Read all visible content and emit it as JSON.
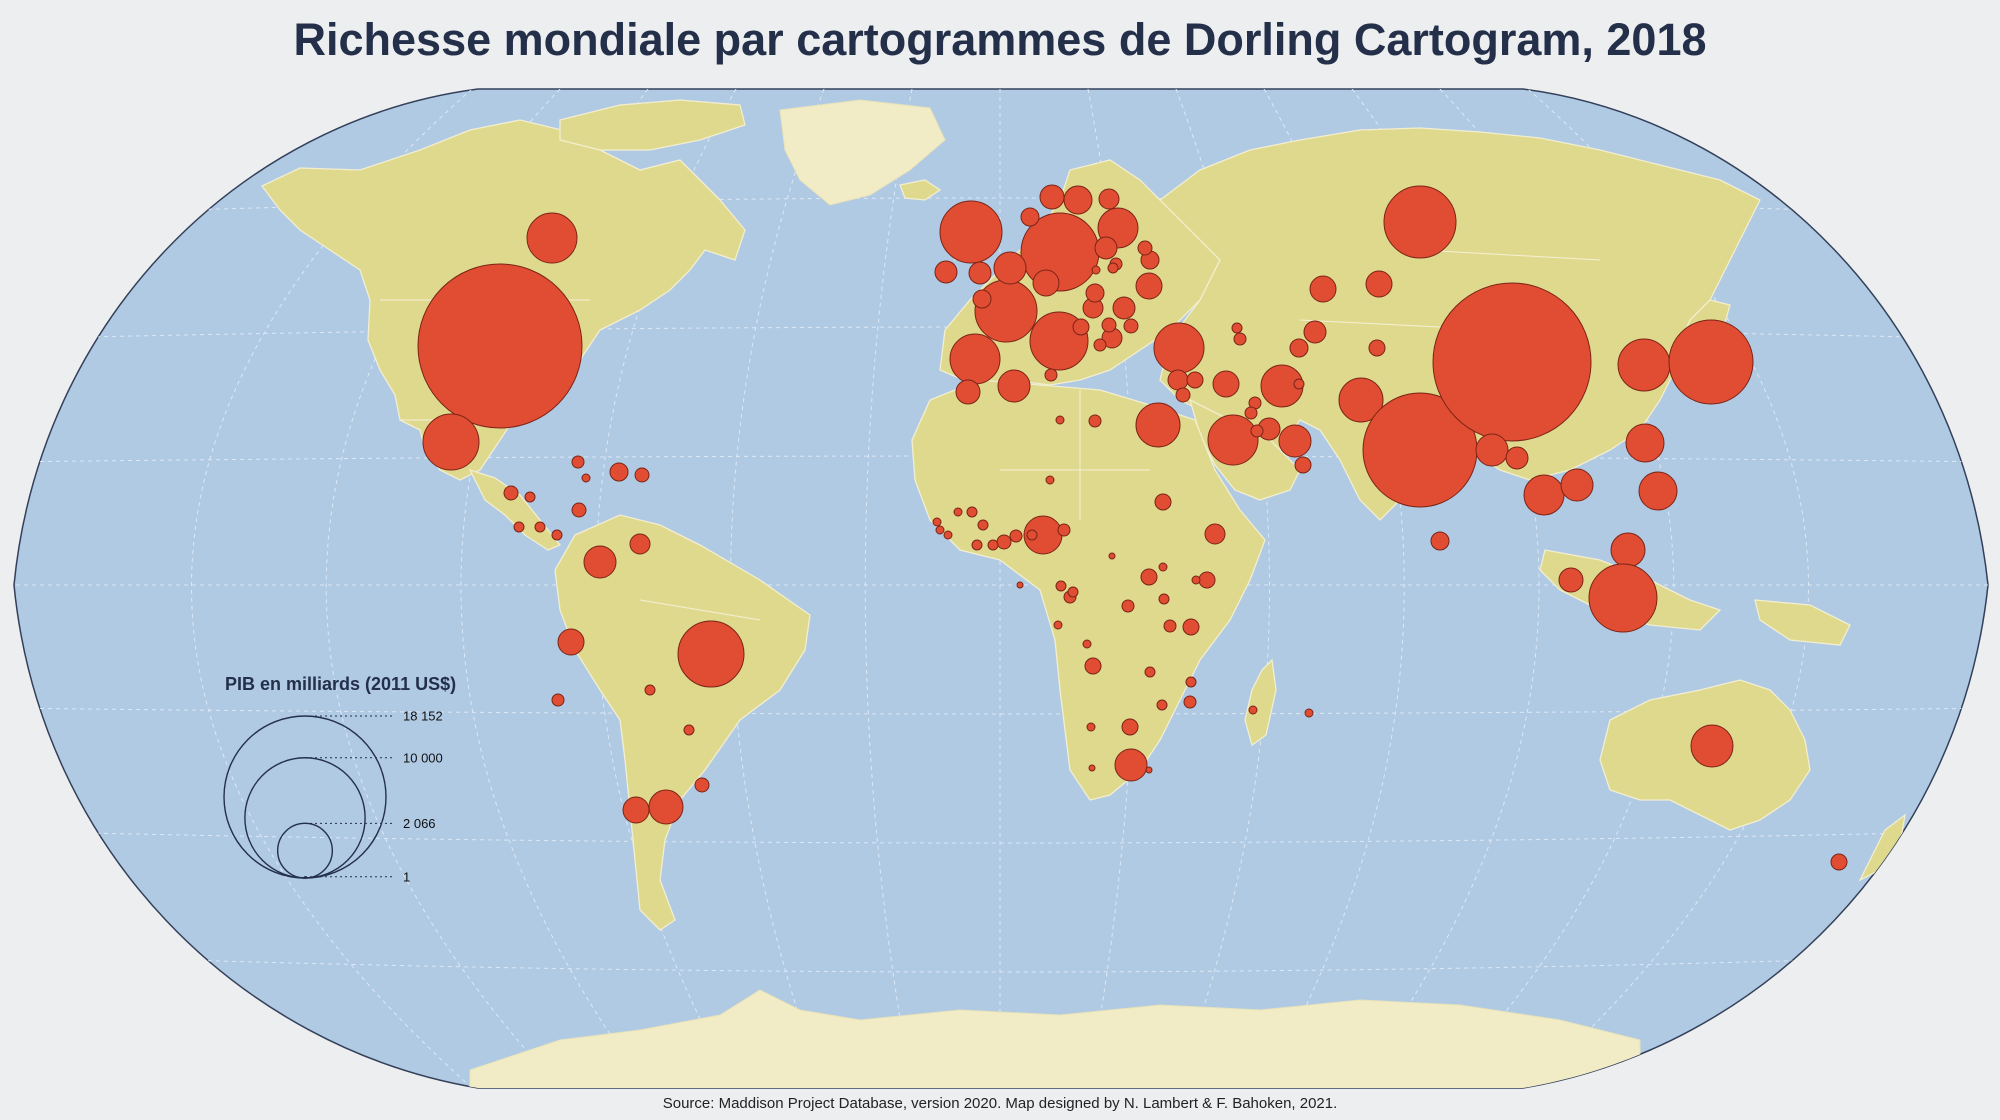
{
  "title": "Richesse mondiale par cartogrammes de Dorling Cartogram, 2018",
  "source": "Source: Maddison Project Database, version 2020. Map designed by N. Lambert & F. Bahoken, 2021.",
  "colors": {
    "background": "#edeef0",
    "ocean": "#b0cae4",
    "land": "#dfd98d",
    "ice": "#f1ecc6",
    "bubble": "#e04d33",
    "title": "#24304a"
  },
  "legend": {
    "title": "PIB en milliards (2011 US$)",
    "entries": [
      {
        "label": "18 152",
        "value": 18152
      },
      {
        "label": "10 000",
        "value": 10000
      },
      {
        "label": "2 066",
        "value": 2066
      },
      {
        "label": "1",
        "value": 1
      }
    ]
  },
  "projection": "Winkel Tripel",
  "bubbles_ref_value": 18152
}
